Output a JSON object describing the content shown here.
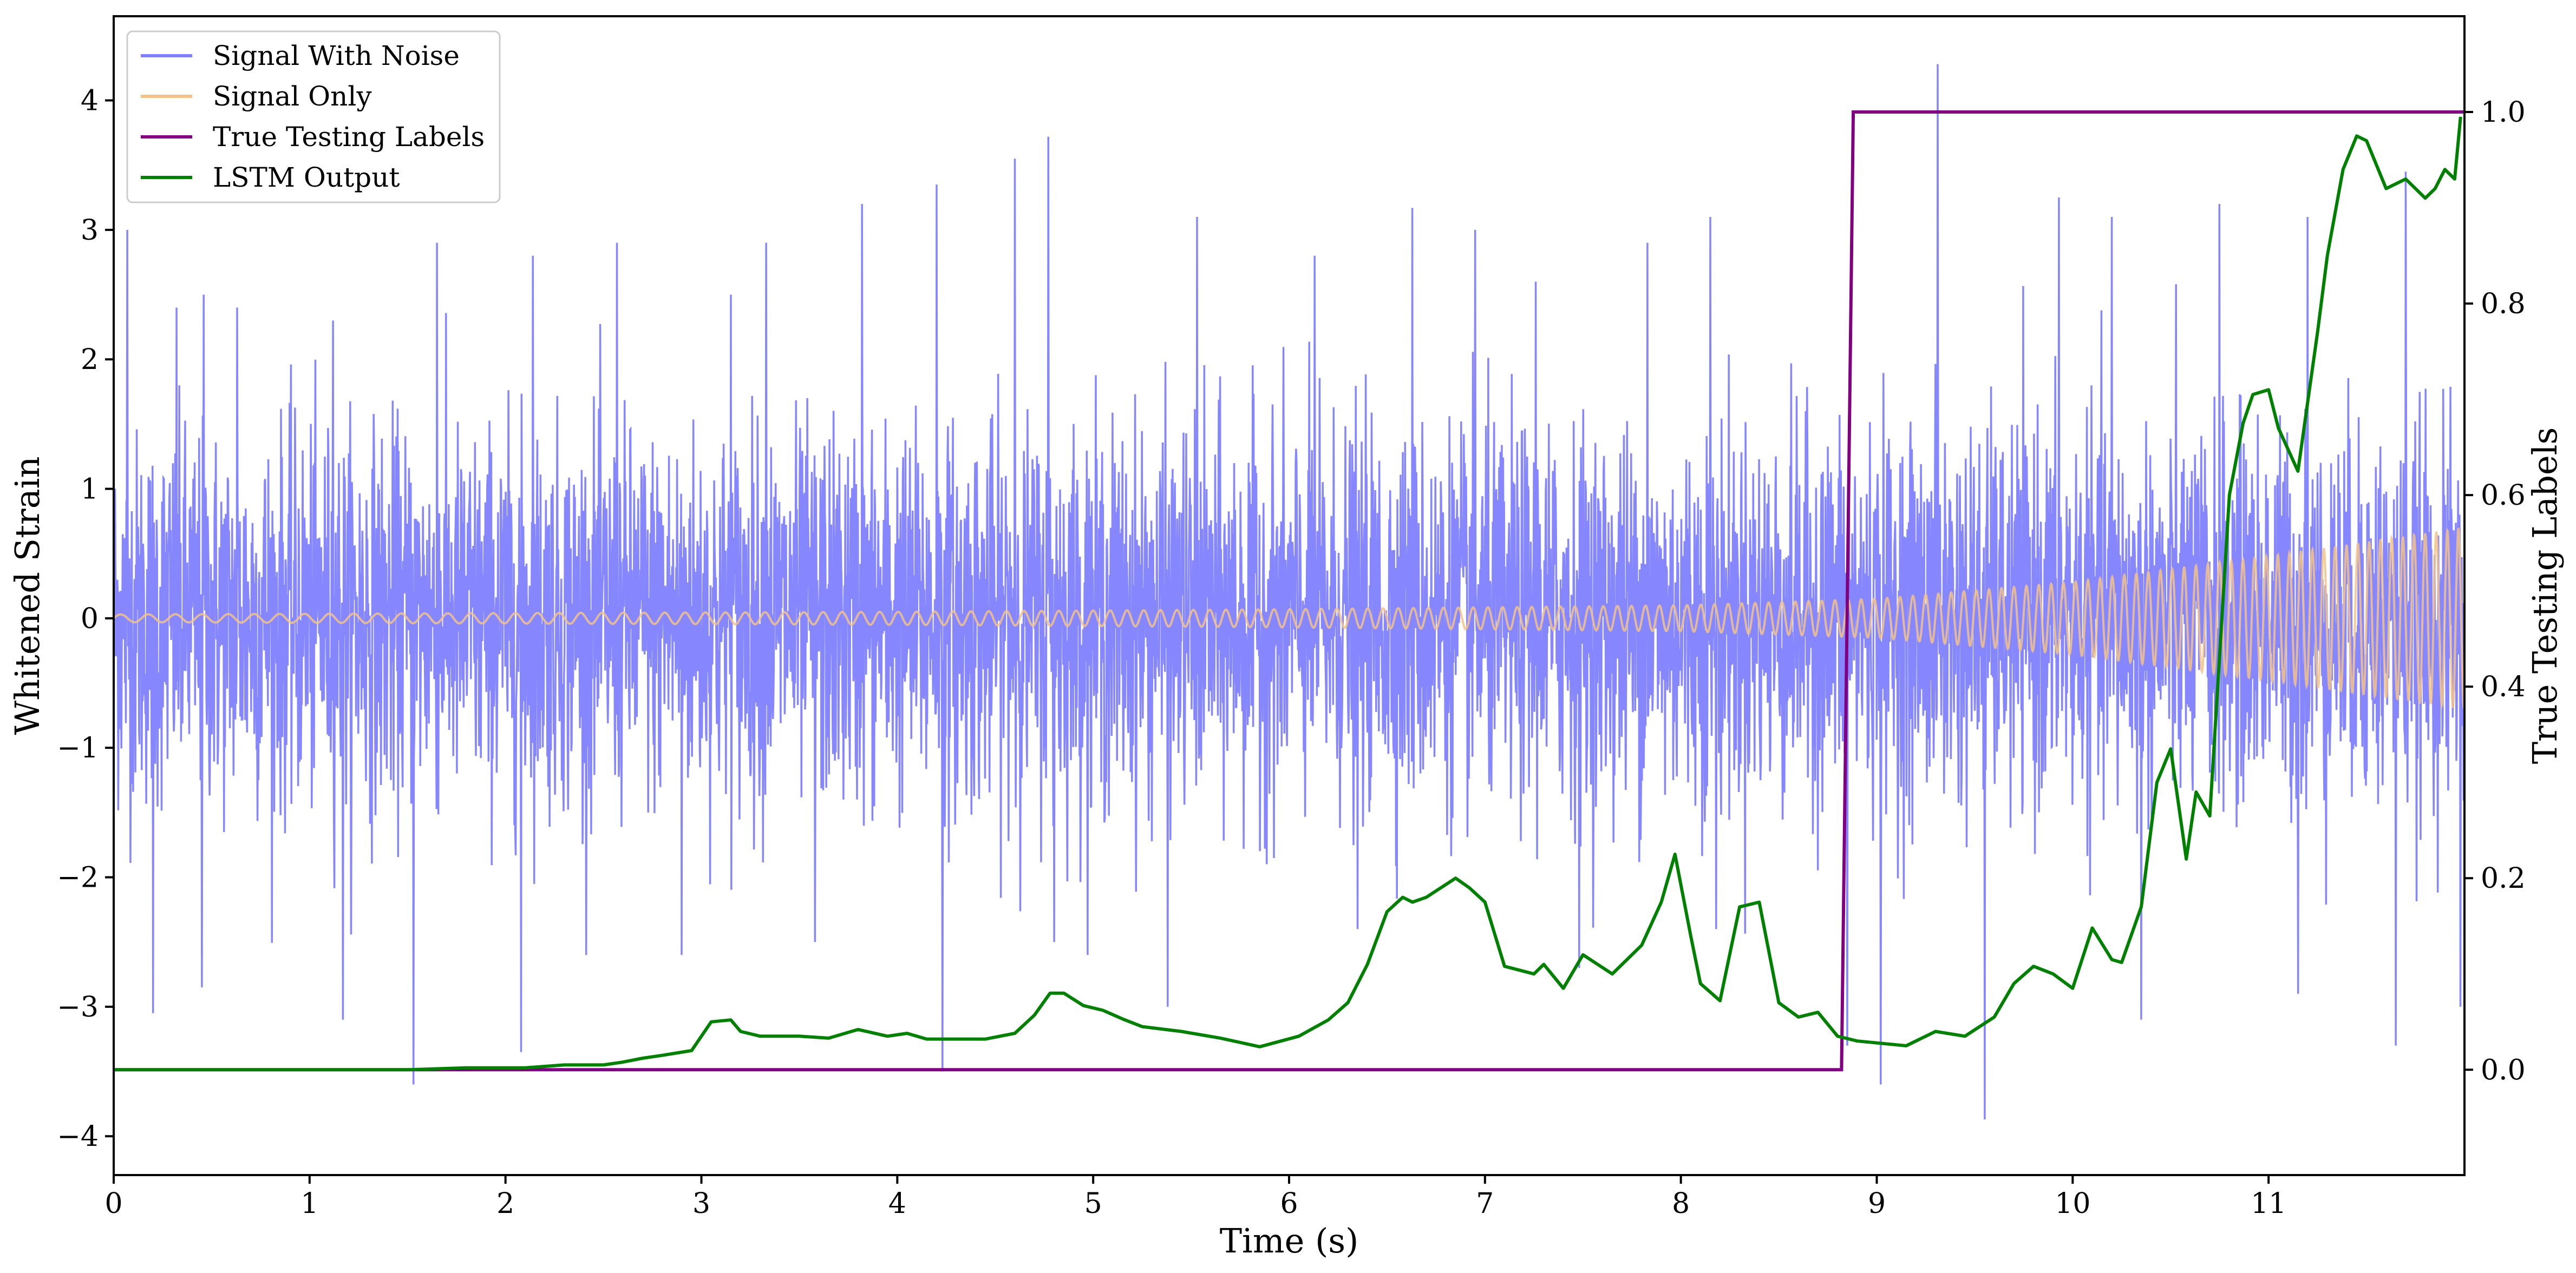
{
  "chart_data": {
    "type": "line",
    "xlabel": "Time (s)",
    "ylabel": "Whitened Strain",
    "y2label": "True Testing Labels",
    "xlim": [
      0,
      12
    ],
    "ylim": [
      -4.3,
      4.65
    ],
    "y2lim": [
      -0.11,
      1.1
    ],
    "x_ticks": [
      "0",
      "1",
      "2",
      "3",
      "4",
      "5",
      "6",
      "7",
      "8",
      "9",
      "10",
      "11"
    ],
    "y_ticks": [
      "−4",
      "−3",
      "−2",
      "−1",
      "0",
      "1",
      "2",
      "3",
      "4"
    ],
    "y2_ticks": [
      "0.0",
      "0.2",
      "0.4",
      "0.6",
      "0.8",
      "1.0"
    ],
    "grid": false,
    "legend_position": "top-left",
    "colors": {
      "noise": "#8080ff",
      "signal": "#f2c28a",
      "labels": "#800080",
      "lstm": "#008000"
    },
    "series": [
      {
        "name": "Signal With Noise",
        "axis": "left",
        "color": "#8080ff",
        "description": "dense whitened strain noise, roughly Gaussian with amplitude about ±1.3, spikes up to ±4",
        "spikes": [
          {
            "x": 0.07,
            "y": 3.0
          },
          {
            "x": 0.32,
            "y": 2.4
          },
          {
            "x": 0.46,
            "y": 2.5
          },
          {
            "x": 0.63,
            "y": 2.4
          },
          {
            "x": 1.12,
            "y": 2.3
          },
          {
            "x": 1.65,
            "y": 2.9
          },
          {
            "x": 2.14,
            "y": 2.8
          },
          {
            "x": 2.57,
            "y": 2.9
          },
          {
            "x": 3.15,
            "y": 2.5
          },
          {
            "x": 3.33,
            "y": 2.9
          },
          {
            "x": 3.82,
            "y": 3.2
          },
          {
            "x": 4.2,
            "y": 3.35
          },
          {
            "x": 4.6,
            "y": 3.55
          },
          {
            "x": 4.77,
            "y": 3.72
          },
          {
            "x": 5.53,
            "y": 3.1
          },
          {
            "x": 6.13,
            "y": 2.8
          },
          {
            "x": 6.63,
            "y": 3.17
          },
          {
            "x": 6.95,
            "y": 3.0
          },
          {
            "x": 7.26,
            "y": 2.6
          },
          {
            "x": 7.83,
            "y": 2.9
          },
          {
            "x": 8.15,
            "y": 3.1
          },
          {
            "x": 8.85,
            "y": 4.07
          },
          {
            "x": 9.31,
            "y": 4.28
          },
          {
            "x": 9.93,
            "y": 3.25
          },
          {
            "x": 10.2,
            "y": 3.1
          },
          {
            "x": 10.75,
            "y": 3.2
          },
          {
            "x": 11.2,
            "y": 3.1
          },
          {
            "x": 11.7,
            "y": 3.45
          },
          {
            "x": 0.2,
            "y": -3.05
          },
          {
            "x": 0.45,
            "y": -2.85
          },
          {
            "x": 1.17,
            "y": -3.1
          },
          {
            "x": 1.53,
            "y": -3.6
          },
          {
            "x": 2.08,
            "y": -3.35
          },
          {
            "x": 2.9,
            "y": -2.6
          },
          {
            "x": 3.58,
            "y": -2.5
          },
          {
            "x": 4.23,
            "y": -3.5
          },
          {
            "x": 4.8,
            "y": -2.5
          },
          {
            "x": 5.38,
            "y": -3.0
          },
          {
            "x": 6.35,
            "y": -2.4
          },
          {
            "x": 7.48,
            "y": -2.7
          },
          {
            "x": 8.18,
            "y": -2.4
          },
          {
            "x": 8.85,
            "y": -3.3
          },
          {
            "x": 9.02,
            "y": -3.6
          },
          {
            "x": 9.55,
            "y": -3.87
          },
          {
            "x": 10.35,
            "y": -3.1
          },
          {
            "x": 11.15,
            "y": -2.9
          },
          {
            "x": 11.65,
            "y": -3.3
          },
          {
            "x": 11.98,
            "y": -3.0
          }
        ]
      },
      {
        "name": "Signal Only",
        "axis": "left",
        "color": "#f2c28a",
        "description": "chirp with amplitude growing from about 0.03 at t=0 to about 0.7 at t=12",
        "amplitude_envelope": {
          "x": [
            0,
            2,
            4,
            6,
            8,
            9,
            10,
            11,
            12
          ],
          "y": [
            0.03,
            0.04,
            0.05,
            0.07,
            0.1,
            0.15,
            0.28,
            0.48,
            0.7
          ]
        }
      },
      {
        "name": "True Testing Labels",
        "axis": "right",
        "color": "#800080",
        "x": [
          0,
          8.82,
          8.88,
          12
        ],
        "y": [
          0,
          0,
          1,
          1
        ]
      },
      {
        "name": "LSTM Output",
        "axis": "right",
        "color": "#008000",
        "x": [
          0,
          1.0,
          1.5,
          1.8,
          2.0,
          2.1,
          2.3,
          2.5,
          2.6,
          2.7,
          2.8,
          2.95,
          3.05,
          3.15,
          3.2,
          3.3,
          3.5,
          3.65,
          3.8,
          3.95,
          4.05,
          4.15,
          4.3,
          4.45,
          4.6,
          4.7,
          4.78,
          4.85,
          4.95,
          5.05,
          5.15,
          5.25,
          5.45,
          5.65,
          5.85,
          6.05,
          6.2,
          6.3,
          6.4,
          6.5,
          6.58,
          6.63,
          6.7,
          6.85,
          6.92,
          7.0,
          7.1,
          7.25,
          7.3,
          7.4,
          7.5,
          7.65,
          7.8,
          7.9,
          7.97,
          8.05,
          8.1,
          8.2,
          8.3,
          8.4,
          8.5,
          8.6,
          8.7,
          8.8,
          8.9,
          9.0,
          9.15,
          9.3,
          9.45,
          9.6,
          9.7,
          9.8,
          9.9,
          10.0,
          10.1,
          10.2,
          10.25,
          10.35,
          10.43,
          10.5,
          10.58,
          10.63,
          10.7,
          10.8,
          10.87,
          10.92,
          11.0,
          11.05,
          11.15,
          11.25,
          11.3,
          11.38,
          11.45,
          11.5,
          11.6,
          11.7,
          11.8,
          11.85,
          11.9,
          11.95,
          11.98
        ],
        "y": [
          0.0,
          0.0,
          0.0,
          0.002,
          0.002,
          0.002,
          0.005,
          0.005,
          0.008,
          0.012,
          0.015,
          0.02,
          0.05,
          0.052,
          0.04,
          0.035,
          0.035,
          0.033,
          0.042,
          0.035,
          0.038,
          0.032,
          0.032,
          0.032,
          0.038,
          0.057,
          0.08,
          0.08,
          0.067,
          0.062,
          0.053,
          0.045,
          0.04,
          0.033,
          0.024,
          0.035,
          0.052,
          0.07,
          0.11,
          0.165,
          0.18,
          0.175,
          0.18,
          0.2,
          0.19,
          0.175,
          0.108,
          0.1,
          0.11,
          0.085,
          0.12,
          0.1,
          0.13,
          0.175,
          0.225,
          0.14,
          0.09,
          0.072,
          0.17,
          0.175,
          0.07,
          0.055,
          0.06,
          0.035,
          0.03,
          0.028,
          0.025,
          0.04,
          0.035,
          0.055,
          0.09,
          0.108,
          0.1,
          0.085,
          0.148,
          0.115,
          0.112,
          0.17,
          0.3,
          0.335,
          0.22,
          0.29,
          0.265,
          0.6,
          0.675,
          0.705,
          0.71,
          0.67,
          0.625,
          0.77,
          0.85,
          0.94,
          0.975,
          0.97,
          0.92,
          0.93,
          0.91,
          0.92,
          0.94,
          0.93,
          0.995
        ]
      }
    ]
  }
}
